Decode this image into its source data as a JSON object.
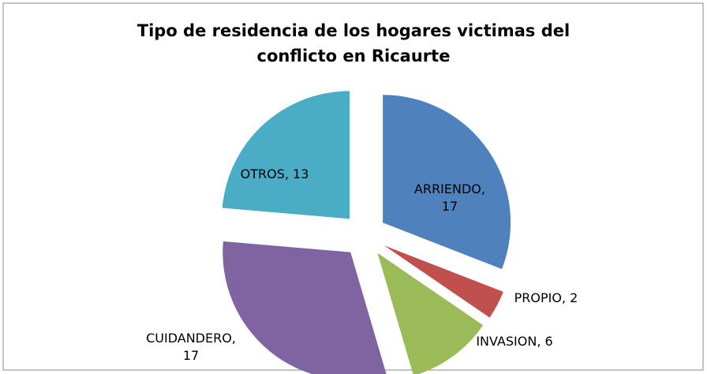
{
  "chart_data": {
    "type": "pie",
    "title": "Tipo de residencia de los hogares victimas del conflicto en Ricaurte",
    "categories": [
      "ARRIENDO",
      "PROPIO",
      "INVASION",
      "CUIDANDERO",
      "OTROS"
    ],
    "values": [
      17,
      2,
      6,
      17,
      13
    ],
    "value_labels": [
      "ARRIENDO, 17",
      "PROPIO, 2",
      "INVASION,  6",
      "CUIDANDERO, 17",
      "OTROS, 13"
    ],
    "colors": [
      "#4f81bd",
      "#c0504d",
      "#9bbb59",
      "#8064a2",
      "#4bacc6"
    ],
    "exploded": true
  }
}
